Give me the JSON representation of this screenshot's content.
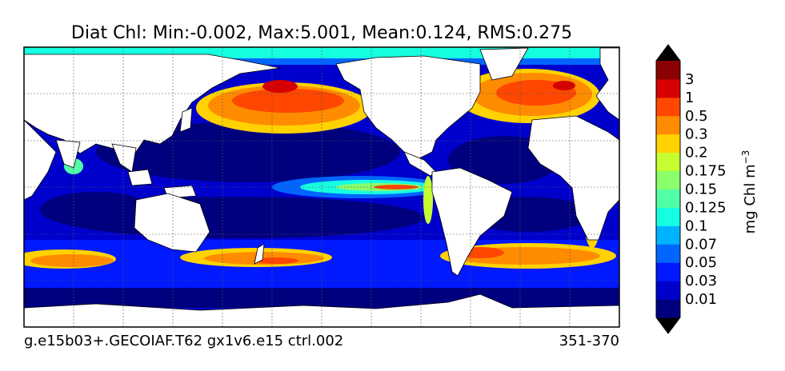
{
  "chart_data": {
    "type": "heatmap",
    "title": "Diat Chl: Min:-0.002, Max:5.001, Mean:0.124, RMS:0.275",
    "stats": {
      "min": -0.002,
      "max": 5.001,
      "mean": 0.124,
      "rms": 0.275
    },
    "footer_left": "g.e15b03+.GECOIAF.T62 gx1v6.e15 ctrl.002",
    "footer_right": "351-370",
    "colorbar": {
      "label": "mg Chl m",
      "label_superscript": "−3",
      "levels": [
        "0.01",
        "0.03",
        "0.05",
        "0.07",
        "0.1",
        "0.125",
        "0.15",
        "0.175",
        "0.2",
        "0.3",
        "0.5",
        "1",
        "3"
      ],
      "colors": [
        "#00007f",
        "#0000cd",
        "#0019ff",
        "#0066ff",
        "#00b3ff",
        "#16ffe1",
        "#50ffa6",
        "#8aff6c",
        "#c5ff31",
        "#ffd200",
        "#ff8c00",
        "#ff4700",
        "#d60000",
        "#8b0000"
      ],
      "extend": "both",
      "over_under_color": "#000000"
    },
    "map": {
      "projection": "cylindrical",
      "land_color": "#ffffff",
      "grid": true
    }
  }
}
